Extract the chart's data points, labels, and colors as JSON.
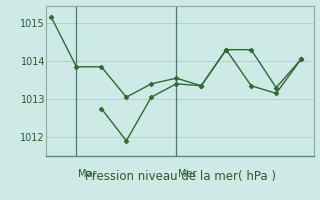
{
  "line1_x": [
    0,
    1,
    2,
    3,
    4,
    5,
    6,
    7,
    8,
    9,
    10
  ],
  "line1_y": [
    1015.15,
    1013.85,
    1013.85,
    1013.05,
    1013.4,
    1013.55,
    1013.35,
    1014.3,
    1014.3,
    1013.3,
    1014.05
  ],
  "line2_x": [
    2,
    3,
    4,
    5,
    6,
    7,
    8,
    9,
    10
  ],
  "line2_y": [
    1012.75,
    1011.9,
    1013.05,
    1013.4,
    1013.35,
    1014.3,
    1013.35,
    1013.15,
    1014.05
  ],
  "line_color": "#2d6a2d",
  "marker": "D",
  "markersize": 2.5,
  "background_color": "#ceeae6",
  "grid_color": "#b0ccc8",
  "xlabel": "Pression niveau de la mer( hPa )",
  "xlabel_fontsize": 8.5,
  "yticks": [
    1012,
    1013,
    1014,
    1015
  ],
  "ylim": [
    1011.5,
    1015.45
  ],
  "xlim": [
    -0.2,
    10.5
  ],
  "vline_positions": [
    1.0,
    5.0
  ],
  "xtick_labels": [
    "Mar",
    "Mer"
  ],
  "xtick_positions": [
    1.0,
    5.0
  ],
  "tick_fontsize": 7,
  "vline_color": "#4a7a6a",
  "spine_color": "#8aaa9a"
}
